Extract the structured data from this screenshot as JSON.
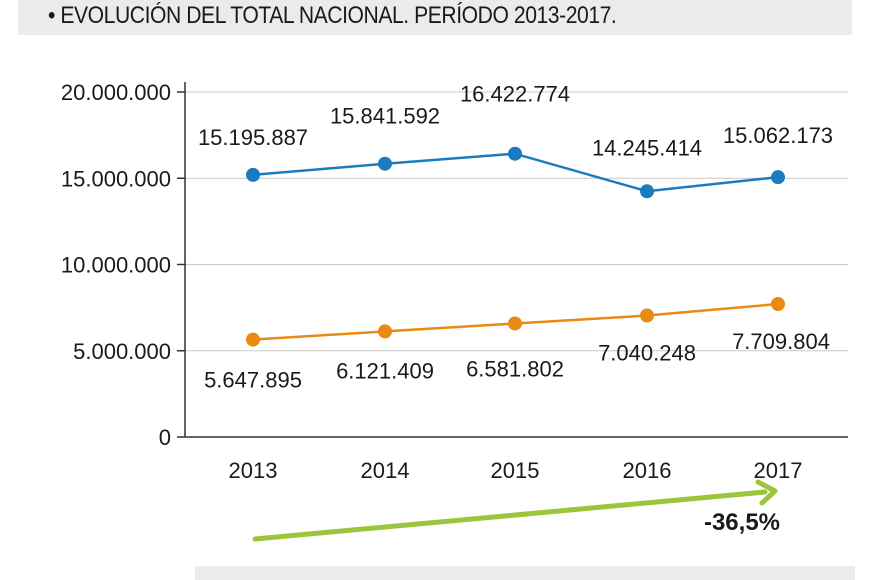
{
  "title": "• EVOLUCIÓN DEL TOTAL NACIONAL. PERÍODO 2013-2017.",
  "chart_data": {
    "type": "line",
    "title": "EVOLUCIÓN DEL TOTAL NACIONAL. PERÍODO 2013-2017.",
    "x": [
      "2013",
      "2014",
      "2015",
      "2016",
      "2017"
    ],
    "ylim": [
      0,
      20000000
    ],
    "yticks": [
      0,
      5000000,
      10000000,
      15000000,
      20000000
    ],
    "ytick_labels": [
      "0",
      "5.000.000",
      "10.000.000",
      "15.000.000",
      "20.000.000"
    ],
    "grid": true,
    "series": [
      {
        "name": "blue",
        "color": "#1a7bbf",
        "values": [
          15195887,
          15841592,
          16422774,
          14245414,
          15062173
        ],
        "labels": [
          "15.195.887",
          "15.841.592",
          "16.422.774",
          "14.245.414",
          "15.062.173"
        ]
      },
      {
        "name": "orange",
        "color": "#ea8a12",
        "values": [
          5647895,
          6121409,
          6581802,
          7040248,
          7709804
        ],
        "labels": [
          "5.647.895",
          "6.121.409",
          "6.581.802",
          "7.040.248",
          "7.709.804"
        ]
      }
    ],
    "annotation": {
      "text": "-36,5%",
      "arrow_color": "#9bc53d"
    }
  }
}
